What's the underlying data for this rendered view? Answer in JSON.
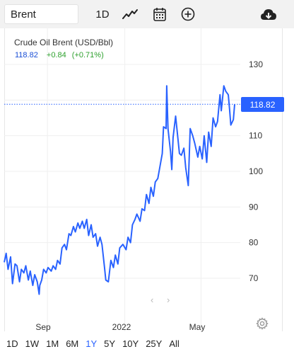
{
  "toolbar": {
    "symbol_value": "Brent",
    "interval_label": "1D",
    "icons": [
      "line-chart-icon",
      "calendar-icon",
      "add-compare-icon",
      "cloud-download-icon"
    ]
  },
  "chart": {
    "title": "Crude Oil Brent (USD/Bbl)",
    "last_price": "118.82",
    "change": "+0.84",
    "change_pct": "(+0.71%)",
    "price_badge": "118.82",
    "colors": {
      "line": "#2962ff",
      "up": "#2ea12e",
      "badge": "#2962ff"
    }
  },
  "chart_data": {
    "type": "line",
    "series": [
      {
        "x": [
          "2021-06-25",
          "2021-06-28",
          "2021-07-01",
          "2021-07-05",
          "2021-07-08",
          "2021-07-12",
          "2021-07-15",
          "2021-07-19",
          "2021-07-22",
          "2021-07-26",
          "2021-07-29",
          "2021-08-02",
          "2021-08-05",
          "2021-08-09",
          "2021-08-12",
          "2021-08-16",
          "2021-08-19",
          "2021-08-20",
          "2021-08-23",
          "2021-08-26",
          "2021-08-30",
          "2021-09-02",
          "2021-09-07",
          "2021-09-10",
          "2021-09-14",
          "2021-09-17",
          "2021-09-21",
          "2021-09-24",
          "2021-09-28",
          "2021-10-01",
          "2021-10-05",
          "2021-10-08",
          "2021-10-12",
          "2021-10-15",
          "2021-10-19",
          "2021-10-22",
          "2021-10-26",
          "2021-10-29",
          "2021-11-02",
          "2021-11-05",
          "2021-11-09",
          "2021-11-12",
          "2021-11-16",
          "2021-11-19",
          "2021-11-23",
          "2021-11-26",
          "2021-11-30",
          "2021-12-02",
          "2021-12-06",
          "2021-12-10",
          "2021-12-14",
          "2021-12-17",
          "2021-12-21",
          "2021-12-24",
          "2021-12-29",
          "2022-01-03",
          "2022-01-06",
          "2022-01-10",
          "2022-01-13",
          "2022-01-17",
          "2022-01-20",
          "2022-01-25",
          "2022-01-28",
          "2022-02-01",
          "2022-02-04",
          "2022-02-08",
          "2022-02-11",
          "2022-02-15",
          "2022-02-18",
          "2022-02-22",
          "2022-02-25",
          "2022-03-01",
          "2022-03-03",
          "2022-03-07",
          "2022-03-08",
          "2022-03-10",
          "2022-03-14",
          "2022-03-16",
          "2022-03-18",
          "2022-03-22",
          "2022-03-24",
          "2022-03-28",
          "2022-03-31",
          "2022-04-04",
          "2022-04-07",
          "2022-04-11",
          "2022-04-14",
          "2022-04-18",
          "2022-04-21",
          "2022-04-26",
          "2022-04-29",
          "2022-05-03",
          "2022-05-06",
          "2022-05-10",
          "2022-05-13",
          "2022-05-17",
          "2022-05-20",
          "2022-05-24",
          "2022-05-27",
          "2022-05-31",
          "2022-06-02",
          "2022-06-06",
          "2022-06-09",
          "2022-06-13",
          "2022-06-15",
          "2022-06-17",
          "2022-06-21",
          "2022-06-23"
        ],
        "y": [
          74.5,
          77.0,
          72.5,
          76.0,
          68.5,
          74.0,
          73.5,
          69.0,
          72.5,
          71.5,
          73.5,
          69.5,
          72.0,
          68.0,
          71.0,
          69.0,
          65.5,
          68.0,
          69.5,
          72.5,
          71.5,
          73.0,
          72.0,
          73.5,
          72.5,
          75.0,
          74.0,
          78.5,
          79.5,
          78.0,
          82.5,
          82.0,
          84.5,
          83.0,
          85.5,
          84.0,
          86.0,
          84.0,
          86.5,
          82.0,
          85.0,
          81.5,
          82.5,
          79.0,
          81.5,
          79.5,
          73.0,
          69.5,
          69.0,
          75.0,
          73.0,
          76.5,
          74.0,
          78.5,
          79.5,
          78.0,
          81.5,
          80.0,
          85.0,
          86.5,
          88.0,
          86.0,
          89.5,
          89.0,
          93.5,
          91.0,
          95.5,
          93.0,
          97.0,
          98.0,
          101.0,
          105.0,
          112.5,
          112.0,
          124.0,
          112.0,
          105.5,
          100.5,
          109.5,
          115.5,
          112.0,
          105.0,
          104.5,
          106.5,
          101.0,
          96.0,
          112.0,
          110.0,
          108.0,
          104.0,
          107.0,
          103.5,
          110.0,
          102.5,
          111.0,
          107.0,
          115.0,
          112.5,
          114.0,
          121.5,
          117.0,
          124.0,
          122.5,
          121.5,
          117.5,
          113.0,
          114.5,
          118.8
        ]
      }
    ],
    "ylim": [
      63,
      134
    ],
    "yticks": [
      "130",
      "120",
      "110",
      "100",
      "90",
      "80",
      "70"
    ],
    "xticks": [
      "Sep",
      "2022",
      "May"
    ],
    "last_value": 118.82,
    "grid": true
  },
  "nav": {
    "left": "‹",
    "right": "›"
  },
  "ranges": [
    "1D",
    "1W",
    "1M",
    "6M",
    "1Y",
    "5Y",
    "10Y",
    "25Y",
    "All"
  ],
  "active_range": "1Y",
  "settings_icon": "gear-icon"
}
